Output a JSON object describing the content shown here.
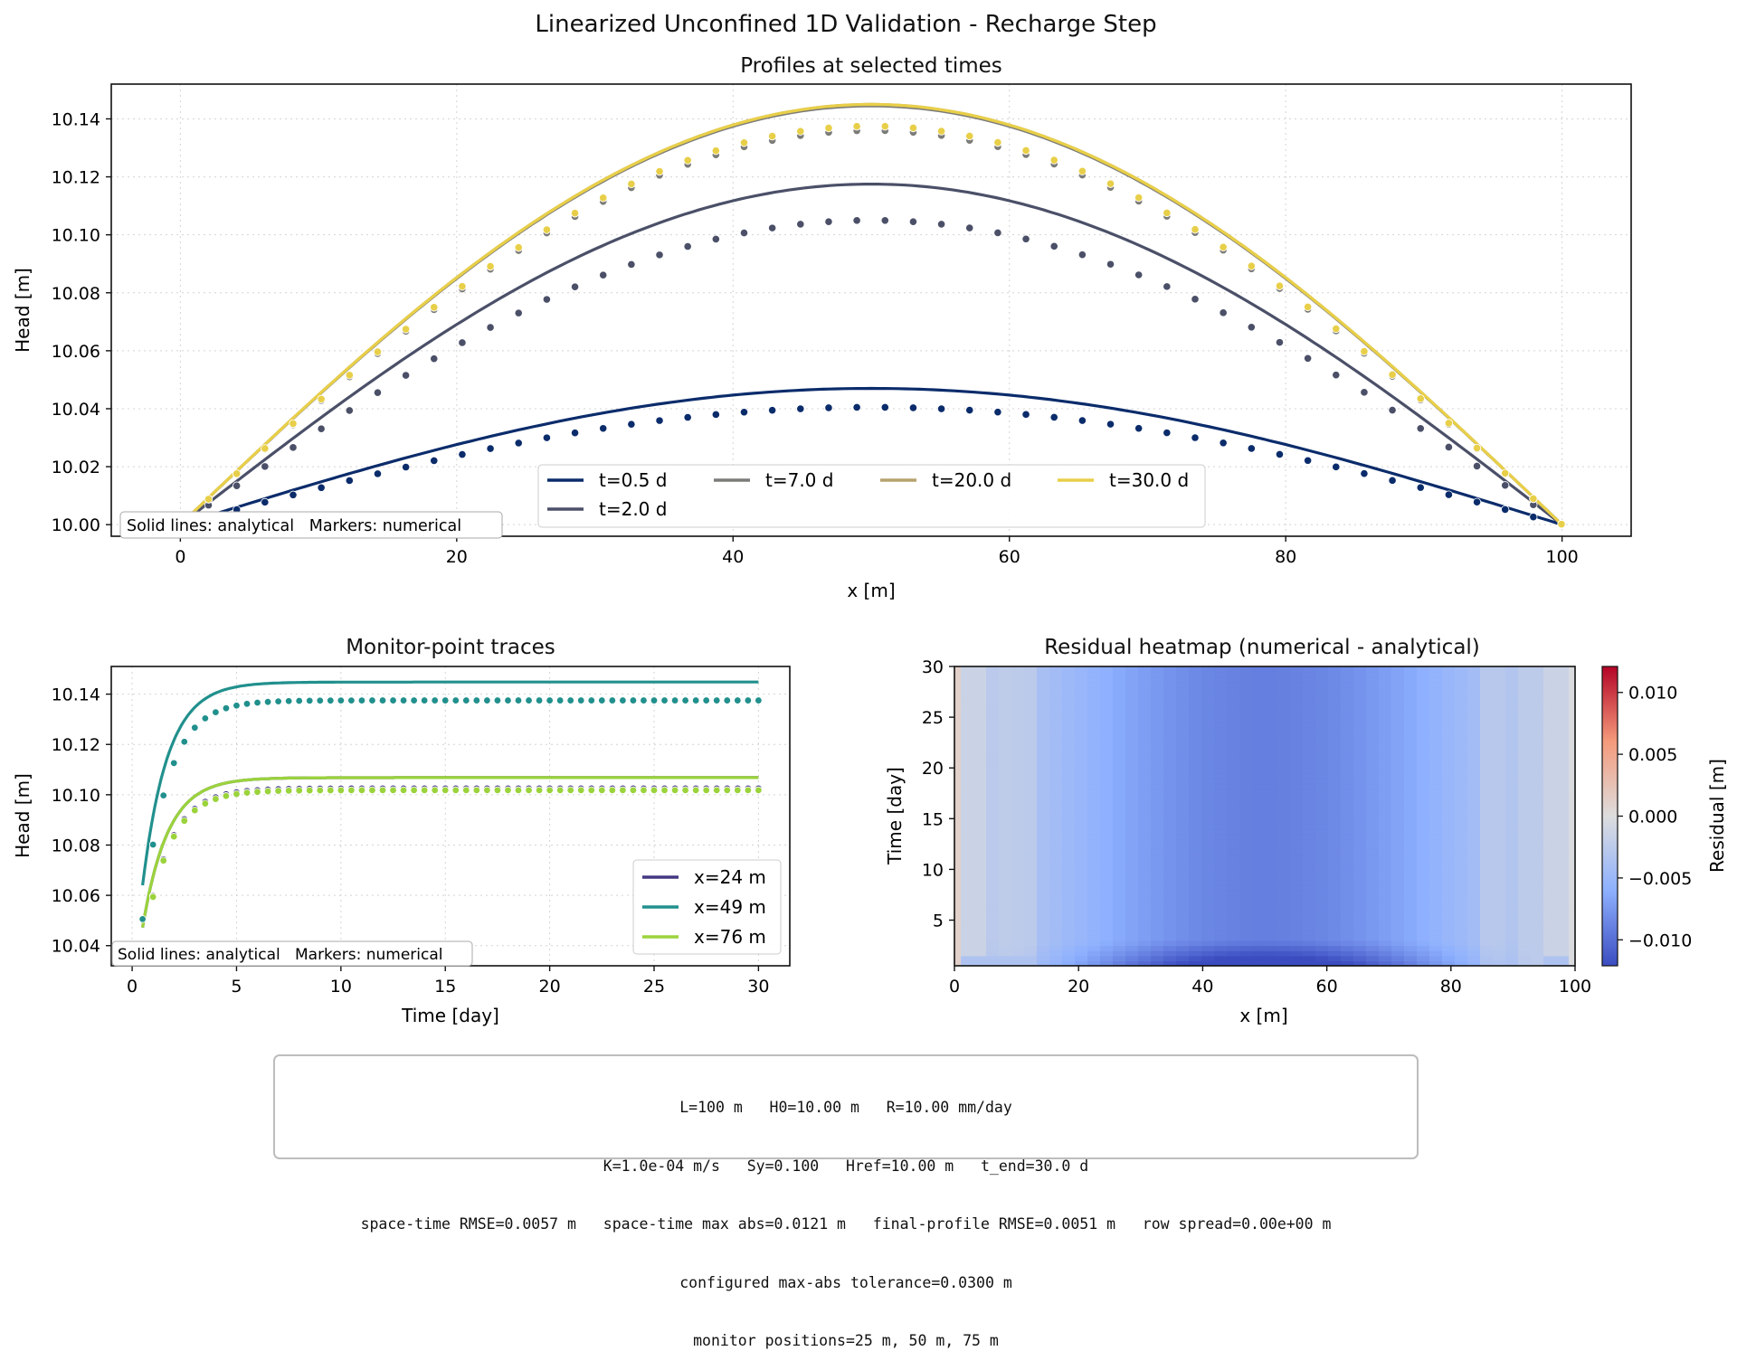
{
  "suptitle": "Linearized Unconfined 1D Validation - Recharge Step",
  "summary_lines": [
    "L=100 m   H0=10.00 m   R=10.00 mm/day",
    "K=1.0e-04 m/s   Sy=0.100   Href=10.00 m   t_end=30.0 d",
    "space-time RMSE=0.0057 m   space-time max abs=0.0121 m   final-profile RMSE=0.0051 m   row spread=0.00e+00 m",
    "configured max-abs tolerance=0.0300 m",
    "monitor positions=25 m, 50 m, 75 m"
  ],
  "chart_data": [
    {
      "type": "line",
      "title": "Profiles at selected times",
      "xlabel": "x [m]",
      "ylabel": "Head [m]",
      "xlim": [
        -5,
        105
      ],
      "ylim": [
        9.996,
        10.152
      ],
      "xticks": [
        0,
        20,
        40,
        60,
        80,
        100
      ],
      "yticks": [
        10.0,
        10.02,
        10.04,
        10.06,
        10.08,
        10.1,
        10.12,
        10.14
      ],
      "grid": true,
      "legend_position": "lower-center",
      "note": "Solid lines: analytical   Markers: numerical",
      "series": [
        {
          "name": "t=0.5 d",
          "color": "#0b2c6b",
          "analytical_peak": 10.047,
          "numerical_peak": 10.0405
        },
        {
          "name": "t=2.0 d",
          "color": "#4b5068",
          "analytical_peak": 10.1175,
          "numerical_peak": 10.105
        },
        {
          "name": "t=7.0 d",
          "color": "#7b7b78",
          "analytical_peak": 10.1445,
          "numerical_peak": 10.136
        },
        {
          "name": "t=20.0 d",
          "color": "#b5a26d",
          "analytical_peak": 10.145,
          "numerical_peak": 10.1375
        },
        {
          "name": "t=30.0 d",
          "color": "#e8cf49",
          "analytical_peak": 10.145,
          "numerical_peak": 10.1375
        }
      ]
    },
    {
      "type": "line",
      "title": "Monitor-point traces",
      "xlabel": "Time [day]",
      "ylabel": "Head [m]",
      "xlim": [
        -1,
        31.5
      ],
      "ylim": [
        10.032,
        10.151
      ],
      "xticks": [
        0,
        5,
        10,
        15,
        20,
        25,
        30
      ],
      "yticks": [
        10.04,
        10.06,
        10.08,
        10.1,
        10.12,
        10.14
      ],
      "grid": true,
      "legend_position": "lower-right",
      "note": "Solid lines: analytical   Markers: numerical",
      "series": [
        {
          "name": "x=24 m",
          "color": "#433982",
          "analytical_final": 10.1068,
          "numerical_final": 10.1025
        },
        {
          "name": "x=49 m",
          "color": "#21908d",
          "analytical_final": 10.1448,
          "numerical_final": 10.1375
        },
        {
          "name": "x=76 m",
          "color": "#9bd33c",
          "analytical_final": 10.1068,
          "numerical_final": 10.1018
        }
      ]
    },
    {
      "type": "heatmap",
      "title": "Residual heatmap (numerical - analytical)",
      "xlabel": "x [m]",
      "ylabel": "Time [day]",
      "xlim": [
        0,
        100
      ],
      "ylim": [
        0.5,
        30
      ],
      "xticks": [
        0,
        20,
        40,
        60,
        80,
        100
      ],
      "yticks": [
        5,
        10,
        15,
        20,
        25,
        30
      ],
      "colorbar_label": "Residual [m]",
      "colorbar_range": [
        -0.0121,
        0.0121
      ],
      "colorbar_ticks": [
        "0.010",
        "0.005",
        "0.000",
        "−0.005",
        "−0.010"
      ],
      "colormap": "coolwarm",
      "max_abs_residual": 0.0121
    }
  ]
}
